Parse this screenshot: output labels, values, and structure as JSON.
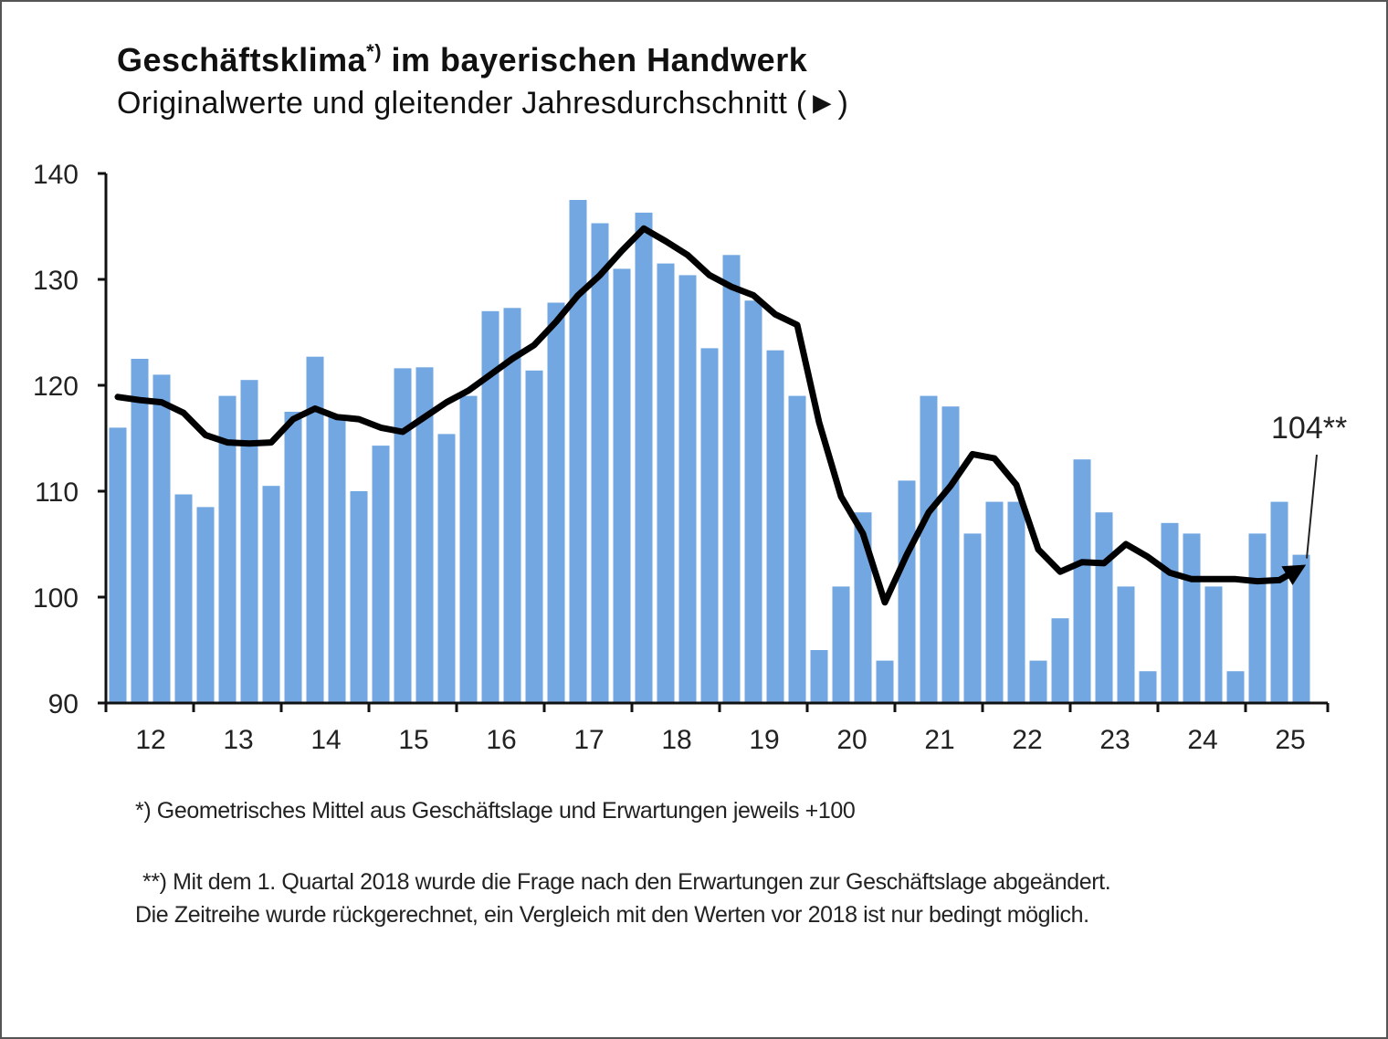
{
  "chart_data": {
    "type": "bar",
    "title": "Geschäftsklima",
    "title_superscript": "*)",
    "title_rest": "im bayerischen Handwerk",
    "subtitle": "Originalwerte und gleitender Jahresdurchschnitt (►)",
    "xlabel": "",
    "ylabel": "",
    "ylim": [
      90,
      140
    ],
    "yticks": [
      "90",
      "100",
      "110",
      "120",
      "130",
      "140"
    ],
    "ytick_values": [
      90,
      100,
      110,
      120,
      130,
      140
    ],
    "year_labels": [
      "12",
      "13",
      "14",
      "15",
      "16",
      "17",
      "18",
      "19",
      "20",
      "21",
      "22",
      "23",
      "24",
      "25"
    ],
    "quarters_per_year": 4,
    "grid": false,
    "series": [
      {
        "name": "Originalwerte",
        "type": "bar",
        "color": "#72a7e1",
        "values": [
          116,
          122.5,
          121,
          109.7,
          108.5,
          119,
          120.5,
          110.5,
          117.5,
          122.7,
          117,
          110,
          114.3,
          121.6,
          121.7,
          115.4,
          119,
          127,
          127.3,
          121.4,
          127.8,
          137.5,
          135.3,
          131,
          136.3,
          131.5,
          130.4,
          123.5,
          132.3,
          128,
          123.3,
          119,
          95,
          101,
          108,
          94,
          111,
          119,
          118,
          106,
          109,
          109,
          94,
          98,
          113,
          108,
          101,
          93,
          107,
          106,
          101,
          93,
          106,
          109,
          104
        ]
      },
      {
        "name": "gleitender Jahresdurchschnitt",
        "type": "line",
        "color": "#000000",
        "values": [
          118.9,
          118.6,
          118.4,
          117.4,
          115.3,
          114.6,
          114.5,
          114.6,
          116.8,
          117.8,
          117.0,
          116.8,
          116.0,
          115.6,
          117.0,
          118.4,
          119.5,
          121.0,
          122.5,
          123.8,
          126.0,
          128.5,
          130.4,
          132.7,
          134.8,
          133.6,
          132.3,
          130.4,
          129.3,
          128.5,
          126.7,
          125.7,
          116.5,
          109.5,
          106.0,
          99.5,
          104.0,
          108.0,
          110.5,
          113.5,
          113.1,
          110.6,
          104.5,
          102.4,
          103.3,
          103.2,
          105.0,
          103.8,
          102.3,
          101.7,
          101.7,
          101.7,
          101.5,
          101.6,
          102.8
        ]
      }
    ],
    "annotation": {
      "label": "104**",
      "value": 104
    }
  },
  "footnotes": {
    "note1": "*)  Geometrisches Mittel aus Geschäftslage und Erwartungen jeweils +100",
    "note2_line1": "**) Mit dem 1. Quartal 2018 wurde die Frage nach den Erwartungen zur Geschäftslage abgeändert.",
    "note2_line2": "Die Zeitreihe wurde rückgerechnet, ein Vergleich mit den Werten vor 2018 ist nur bedingt möglich."
  }
}
